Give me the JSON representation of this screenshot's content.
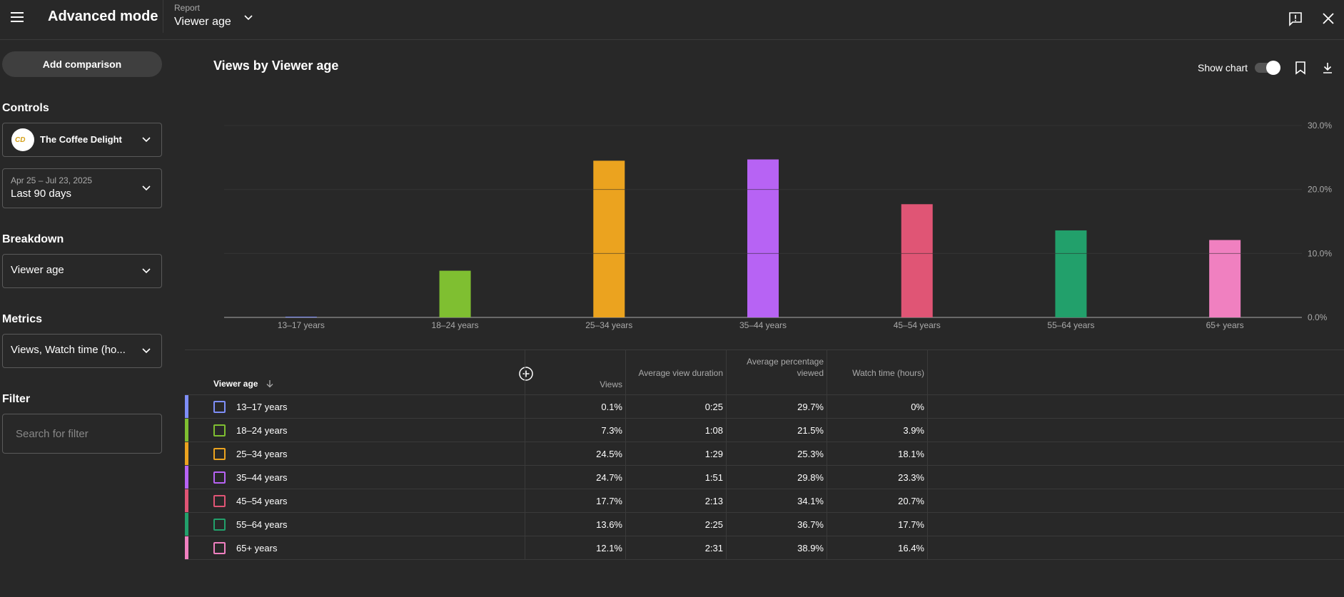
{
  "header": {
    "title": "Advanced mode",
    "report_label": "Report",
    "report_value": "Viewer age"
  },
  "sidebar": {
    "add_comparison": "Add comparison",
    "controls_label": "Controls",
    "channel_name": "The Coffee Delight",
    "channel_logo_text": "CD",
    "date_range": "Apr 25 – Jul 23, 2025",
    "date_preset": "Last 90 days",
    "breakdown_label": "Breakdown",
    "breakdown_value": "Viewer age",
    "metrics_label": "Metrics",
    "metrics_value": "Views, Watch time (ho...",
    "filter_label": "Filter",
    "filter_placeholder": "Search for filter"
  },
  "chart": {
    "title": "Views by Viewer age",
    "show_chart_label": "Show chart",
    "show_chart_on": true
  },
  "chart_data": {
    "type": "bar",
    "categories": [
      "13–17 years",
      "18–24 years",
      "25–34 years",
      "35–44 years",
      "45–54 years",
      "55–64 years",
      "65+ years"
    ],
    "values": [
      0.1,
      7.3,
      24.5,
      24.7,
      17.7,
      13.6,
      12.1
    ],
    "colors": [
      "#7e8ef7",
      "#7fbf31",
      "#eba31f",
      "#b763f4",
      "#e05575",
      "#22a06b",
      "#f080c0"
    ],
    "yticks": [
      "0.0%",
      "10.0%",
      "20.0%",
      "30.0%"
    ],
    "ylim": [
      0,
      30
    ],
    "grid": true
  },
  "table": {
    "first_header": "Viewer age",
    "headers": [
      "Views",
      "Average view duration",
      "Average percentage viewed",
      "Watch time (hours)"
    ],
    "rows": [
      {
        "label": "13–17 years",
        "color": "#7e8ef7",
        "views": "0.1%",
        "avd": "0:25",
        "apv": "29.7%",
        "wt": "0%"
      },
      {
        "label": "18–24 years",
        "color": "#7fbf31",
        "views": "7.3%",
        "avd": "1:08",
        "apv": "21.5%",
        "wt": "3.9%"
      },
      {
        "label": "25–34 years",
        "color": "#eba31f",
        "views": "24.5%",
        "avd": "1:29",
        "apv": "25.3%",
        "wt": "18.1%"
      },
      {
        "label": "35–44 years",
        "color": "#b763f4",
        "views": "24.7%",
        "avd": "1:51",
        "apv": "29.8%",
        "wt": "23.3%"
      },
      {
        "label": "45–54 years",
        "color": "#e05575",
        "views": "17.7%",
        "avd": "2:13",
        "apv": "34.1%",
        "wt": "20.7%"
      },
      {
        "label": "55–64 years",
        "color": "#22a06b",
        "views": "13.6%",
        "avd": "2:25",
        "apv": "36.7%",
        "wt": "17.7%"
      },
      {
        "label": "65+ years",
        "color": "#f080c0",
        "views": "12.1%",
        "avd": "2:31",
        "apv": "38.9%",
        "wt": "16.4%"
      }
    ]
  }
}
